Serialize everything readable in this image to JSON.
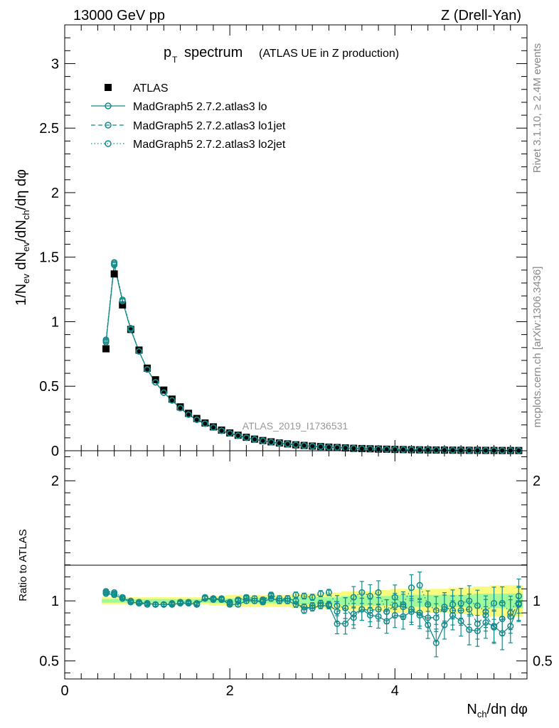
{
  "header": {
    "energy": "13000 GeV pp",
    "process": "Z (Drell-Yan)"
  },
  "side_labels": {
    "rivet": "Rivet 3.1.10, ≥ 2.4M events",
    "source": "mcplots.cern.ch [arXiv:1306.3436]"
  },
  "watermark": "ATLAS_2019_I1736531",
  "chart_data": [
    {
      "type": "scatter",
      "title": "p_T spectrum (ATLAS UE in Z production)",
      "title_main": "p",
      "title_sub": "T",
      "title_rest": "spectrum",
      "title_note": "(ATLAS UE in Z production)",
      "ylabel": "1/N_ev dN_ev/dN_ch/dη dφ",
      "ylim": [
        0,
        3.3
      ],
      "xlim": [
        0,
        5.6
      ],
      "yticks": [
        0,
        0.5,
        1,
        1.5,
        2,
        2.5,
        3
      ],
      "ytick_labels": [
        "0",
        "0.5",
        "1",
        "1.5",
        "2",
        "2.5",
        "3"
      ],
      "legend_position": "top-left",
      "legend": [
        "ATLAS",
        "MadGraph5 2.7.2.atlas3 lo",
        "MadGraph5 2.7.2.atlas3 lo1jet",
        "MadGraph5 2.7.2.atlas3 lo2jet"
      ],
      "x": [
        0.5,
        0.6,
        0.7,
        0.8,
        0.9,
        1.0,
        1.1,
        1.2,
        1.3,
        1.4,
        1.5,
        1.6,
        1.7,
        1.8,
        1.9,
        2.0,
        2.1,
        2.2,
        2.3,
        2.4,
        2.5,
        2.6,
        2.7,
        2.8,
        2.9,
        3.0,
        3.1,
        3.2,
        3.3,
        3.4,
        3.5,
        3.6,
        3.7,
        3.8,
        3.9,
        4.0,
        4.1,
        4.2,
        4.3,
        4.4,
        4.5,
        4.6,
        4.7,
        4.8,
        4.9,
        5.0,
        5.1,
        5.2,
        5.3,
        5.4,
        5.5
      ],
      "series": [
        {
          "name": "ATLAS",
          "values": [
            0.79,
            1.37,
            1.13,
            0.94,
            0.78,
            0.64,
            0.55,
            0.47,
            0.4,
            0.34,
            0.29,
            0.25,
            0.215,
            0.185,
            0.16,
            0.138,
            0.12,
            0.104,
            0.09,
            0.079,
            0.069,
            0.06,
            0.053,
            0.046,
            0.041,
            0.036,
            0.032,
            0.028,
            0.025,
            0.022,
            0.019,
            0.017,
            0.015,
            0.013,
            0.012,
            0.01,
            0.009,
            0.008,
            0.007,
            0.0063,
            0.0056,
            0.005,
            0.0044,
            0.0039,
            0.0035,
            0.0031,
            0.0027,
            0.0024,
            0.0021,
            0.0019,
            0.0017
          ]
        },
        {
          "name": "MadGraph5 2.7.2.atlas3 lo",
          "values": [
            0.84,
            1.44,
            1.16,
            0.94,
            0.77,
            0.63,
            0.53,
            0.45,
            0.39,
            0.33,
            0.28,
            0.24,
            0.21,
            0.18,
            0.155,
            0.135,
            0.117,
            0.101,
            0.087,
            0.076,
            0.066,
            0.058,
            0.051,
            0.045,
            0.039,
            0.034,
            0.03,
            0.027,
            0.024,
            0.021,
            0.018,
            0.016,
            0.014,
            0.012,
            0.011,
            0.0095,
            0.0085,
            0.0075,
            0.0066,
            0.0058,
            0.0051,
            0.0045,
            0.004,
            0.0035,
            0.0031,
            0.0027,
            0.0024,
            0.0021,
            0.0019,
            0.0017,
            0.0015
          ]
        },
        {
          "name": "MadGraph5 2.7.2.atlas3 lo1jet",
          "values": [
            0.85,
            1.45,
            1.16,
            0.94,
            0.77,
            0.63,
            0.53,
            0.45,
            0.39,
            0.33,
            0.28,
            0.24,
            0.21,
            0.18,
            0.155,
            0.135,
            0.117,
            0.101,
            0.088,
            0.077,
            0.067,
            0.059,
            0.052,
            0.046,
            0.04,
            0.035,
            0.031,
            0.027,
            0.024,
            0.021,
            0.019,
            0.017,
            0.015,
            0.013,
            0.011,
            0.0098,
            0.0088,
            0.0078,
            0.0069,
            0.0061,
            0.0054,
            0.0048,
            0.0042,
            0.0037,
            0.0033,
            0.0029,
            0.0026,
            0.0023,
            0.002,
            0.0018,
            0.0016
          ]
        },
        {
          "name": "MadGraph5 2.7.2.atlas3 lo2jet",
          "values": [
            0.86,
            1.46,
            1.17,
            0.95,
            0.77,
            0.63,
            0.53,
            0.45,
            0.39,
            0.33,
            0.28,
            0.24,
            0.21,
            0.18,
            0.155,
            0.135,
            0.117,
            0.102,
            0.089,
            0.078,
            0.068,
            0.06,
            0.053,
            0.047,
            0.041,
            0.036,
            0.032,
            0.028,
            0.025,
            0.022,
            0.019,
            0.017,
            0.015,
            0.013,
            0.012,
            0.01,
            0.009,
            0.008,
            0.007,
            0.0063,
            0.0056,
            0.005,
            0.0044,
            0.0039,
            0.0035,
            0.0031,
            0.0027,
            0.0024,
            0.0021,
            0.0019,
            0.0017
          ]
        }
      ]
    },
    {
      "type": "scatter",
      "ylabel": "Ratio to ATLAS",
      "xlabel": "N_ch/dη dφ",
      "ylim": [
        0.35,
        2.25
      ],
      "xlim": [
        0,
        5.6
      ],
      "yticks": [
        0.5,
        1,
        2
      ],
      "ytick_labels": [
        "0.5",
        "1",
        "2"
      ],
      "xticks": [
        0,
        2,
        4
      ],
      "xtick_labels": [
        "0",
        "2",
        "4"
      ],
      "x": [
        0.5,
        0.6,
        0.7,
        0.8,
        0.9,
        1.0,
        1.1,
        1.2,
        1.3,
        1.4,
        1.5,
        1.6,
        1.7,
        1.8,
        1.9,
        2.0,
        2.1,
        2.2,
        2.3,
        2.4,
        2.5,
        2.6,
        2.7,
        2.8,
        2.9,
        3.0,
        3.1,
        3.2,
        3.3,
        3.4,
        3.5,
        3.6,
        3.7,
        3.8,
        3.9,
        4.0,
        4.1,
        4.2,
        4.3,
        4.4,
        4.5,
        4.6,
        4.7,
        4.8,
        4.9,
        5.0,
        5.1,
        5.2,
        5.3,
        5.4,
        5.5
      ],
      "band_yellow_halfwidth": [
        0.03,
        0.03,
        0.03,
        0.03,
        0.03,
        0.03,
        0.03,
        0.03,
        0.03,
        0.03,
        0.03,
        0.03,
        0.03,
        0.04,
        0.04,
        0.05,
        0.05,
        0.05,
        0.05,
        0.05,
        0.05,
        0.05,
        0.05,
        0.06,
        0.06,
        0.06,
        0.06,
        0.07,
        0.07,
        0.08,
        0.08,
        0.08,
        0.08,
        0.09,
        0.09,
        0.1,
        0.1,
        0.1,
        0.1,
        0.1,
        0.1,
        0.1,
        0.11,
        0.11,
        0.11,
        0.12,
        0.12,
        0.13,
        0.13,
        0.13,
        0.13
      ],
      "band_green_halfwidth": [
        0.015,
        0.015,
        0.015,
        0.015,
        0.015,
        0.015,
        0.015,
        0.015,
        0.015,
        0.015,
        0.015,
        0.015,
        0.015,
        0.02,
        0.02,
        0.02,
        0.02,
        0.02,
        0.02,
        0.02,
        0.02,
        0.02,
        0.02,
        0.03,
        0.03,
        0.03,
        0.03,
        0.03,
        0.03,
        0.04,
        0.04,
        0.04,
        0.04,
        0.04,
        0.04,
        0.05,
        0.05,
        0.05,
        0.05,
        0.05,
        0.05,
        0.05,
        0.05,
        0.05,
        0.05,
        0.06,
        0.06,
        0.06,
        0.06,
        0.06,
        0.06
      ],
      "series": [
        {
          "name": "MadGraph5 2.7.2.atlas3 lo",
          "values": [
            1.06,
            1.05,
            1.02,
            0.99,
            0.98,
            0.98,
            0.97,
            0.97,
            0.97,
            0.98,
            0.98,
            0.97,
            1.02,
            1.01,
            1.01,
            0.97,
            0.97,
            1.0,
            1.0,
            0.99,
            1.02,
            1.0,
            1.0,
            0.97,
            0.95,
            0.94,
            0.96,
            0.96,
            0.81,
            0.81,
            0.89,
            0.93,
            0.88,
            0.87,
            0.83,
            0.88,
            0.87,
            0.91,
            0.9,
            0.8,
            0.65,
            0.8,
            0.88,
            0.83,
            0.76,
            0.75,
            0.82,
            0.79,
            0.73,
            0.79,
            0.97
          ]
        },
        {
          "name": "MadGraph5 2.7.2.atlas3 lo1jet",
          "values": [
            1.07,
            1.06,
            1.02,
            0.99,
            0.98,
            0.97,
            0.97,
            0.97,
            0.97,
            0.98,
            0.98,
            0.97,
            1.02,
            1.02,
            1.01,
            0.98,
            1.0,
            1.02,
            1.0,
            1.0,
            1.04,
            1.0,
            1.02,
            1.0,
            0.92,
            0.96,
            0.98,
            0.97,
            0.91,
            0.94,
            0.86,
            0.93,
            0.92,
            0.93,
            0.91,
            0.96,
            0.95,
            0.93,
            0.88,
            0.86,
            0.86,
            0.95,
            0.92,
            0.92,
            0.93,
            0.81,
            0.88,
            0.78,
            0.85,
            0.87,
            0.98
          ]
        },
        {
          "name": "MadGraph5 2.7.2.atlas3 lo2jet",
          "values": [
            1.08,
            1.07,
            1.03,
            1.0,
            0.99,
            0.98,
            0.97,
            0.97,
            0.98,
            0.99,
            0.99,
            0.98,
            1.03,
            1.02,
            1.02,
            0.99,
            1.01,
            1.03,
            1.02,
            1.01,
            1.05,
            1.02,
            1.02,
            1.05,
            1.04,
            1.03,
            1.06,
            1.07,
            0.96,
            0.94,
            1.03,
            1.07,
            1.04,
            1.07,
            0.91,
            1.03,
            0.97,
            1.11,
            1.13,
            0.97,
            0.92,
            0.93,
            0.97,
            0.98,
            1.0,
            0.96,
            0.91,
            0.98,
            0.98,
            0.9,
            1.04
          ]
        }
      ]
    }
  ],
  "colors": {
    "mc": "#138b8b",
    "data": "#000000",
    "band_yellow": "#fafa7e",
    "band_green": "#9cfa9c",
    "side_text": "#888888"
  }
}
